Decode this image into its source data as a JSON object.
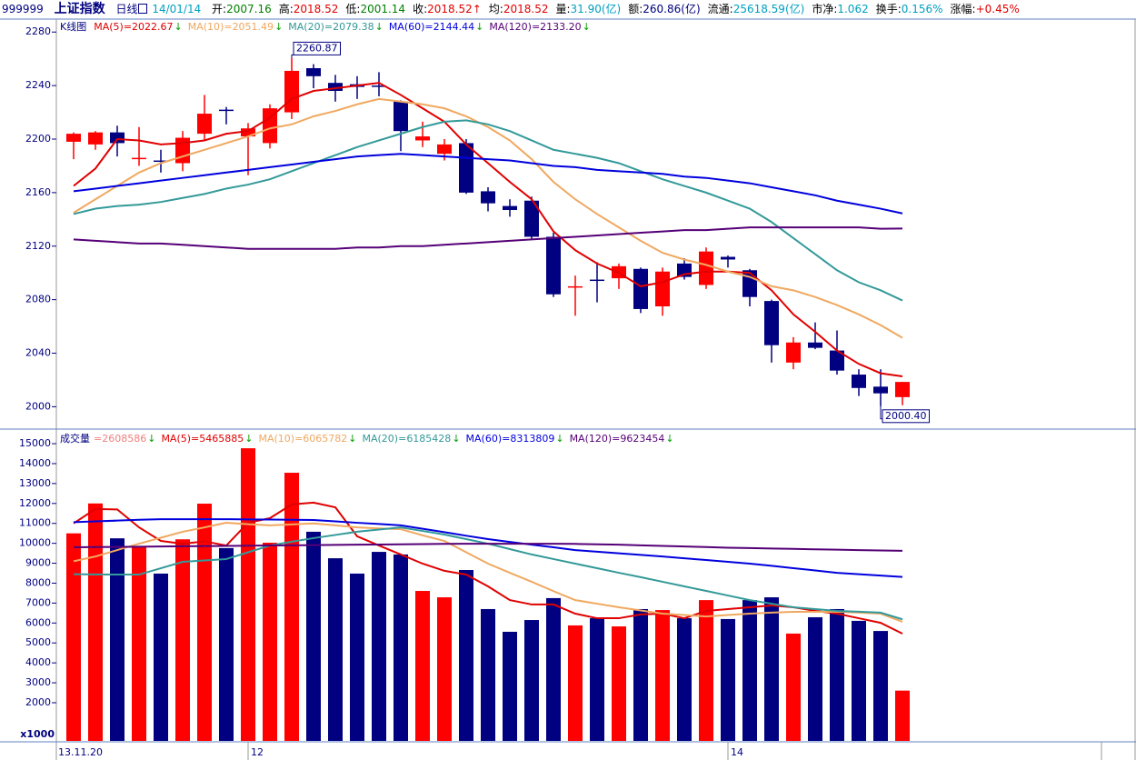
{
  "header": {
    "code": "999999",
    "name": "上证指数",
    "period": "日线",
    "date": "14/01/14",
    "fields": [
      {
        "label": "开:",
        "value": "2007.16",
        "color": "#008000"
      },
      {
        "label": "高:",
        "value": "2018.52",
        "color": "#e00000"
      },
      {
        "label": "低:",
        "value": "2001.14",
        "color": "#008000"
      },
      {
        "label": "收:",
        "value": "2018.52↑",
        "color": "#e00000"
      },
      {
        "label": "均:",
        "value": "2018.52",
        "color": "#e00000"
      },
      {
        "label": "量:",
        "value": "31.90(亿)",
        "color": "#00a0c0"
      },
      {
        "label": "额:",
        "value": "260.86(亿)",
        "color": "#000080"
      },
      {
        "label": "流通:",
        "value": "25618.59(亿)",
        "color": "#00a0c0"
      },
      {
        "label": "市净:",
        "value": "1.062",
        "color": "#00a0c0"
      },
      {
        "label": "换手:",
        "value": "0.156%",
        "color": "#00a0c0"
      },
      {
        "label": "涨幅:",
        "value": "+0.45%",
        "color": "#e00000"
      }
    ]
  },
  "chart_data": [
    {
      "type": "candlestick",
      "title": "K线图",
      "up_color": "#ff0000",
      "down_color": "#000080",
      "categories": [
        "13.11.20",
        null,
        null,
        null,
        null,
        null,
        null,
        null,
        "12",
        null,
        null,
        null,
        null,
        null,
        null,
        null,
        null,
        null,
        null,
        null,
        null,
        null,
        null,
        null,
        null,
        null,
        null,
        null,
        null,
        null,
        "14",
        null,
        null,
        null,
        null,
        null,
        null,
        null,
        null
      ],
      "open": [
        2198,
        2196,
        2205,
        2185,
        2184,
        2182,
        2204,
        2222,
        2202,
        2197,
        2220,
        2253,
        2242,
        2241,
        2240,
        2228,
        2199,
        2189,
        2197,
        2161,
        2150,
        2154,
        2127,
        2089,
        2095,
        2096,
        2103,
        2075,
        2107,
        2091,
        2112,
        2102,
        2079,
        2033,
        2048,
        2042,
        2024,
        2015,
        2007.16
      ],
      "high": [
        2205,
        2206,
        2210,
        2209,
        2192,
        2206,
        2233,
        2224,
        2212,
        2226,
        2260.87,
        2256,
        2248,
        2247,
        2250,
        2229,
        2213,
        2200,
        2200,
        2164,
        2155,
        2157,
        2130,
        2098,
        2108,
        2107,
        2104,
        2104,
        2111,
        2119,
        2113,
        2103,
        2080,
        2052,
        2063,
        2057,
        2028,
        2028,
        2018.52
      ],
      "low": [
        2185,
        2192,
        2187,
        2180,
        2175,
        2176,
        2199,
        2211,
        2173,
        2193,
        2215,
        2238,
        2228,
        2230,
        2232,
        2191,
        2194,
        2184,
        2159,
        2146,
        2142,
        2125,
        2082,
        2068,
        2078,
        2088,
        2070,
        2068,
        2095,
        2088,
        2104,
        2075,
        2033,
        2028,
        2043,
        2024,
        2008,
        2000.4,
        2001.14
      ],
      "close": [
        2204,
        2205,
        2197,
        2186,
        2183,
        2201,
        2219,
        2221,
        2208,
        2223,
        2251,
        2247,
        2236,
        2239,
        2239,
        2206,
        2202,
        2196,
        2160,
        2152,
        2147,
        2127,
        2084,
        2090,
        2094,
        2105,
        2073,
        2101,
        2097,
        2116,
        2110,
        2082,
        2046,
        2048,
        2044,
        2027,
        2014,
        2010,
        2018.52
      ],
      "ylim": [
        1986,
        2289
      ],
      "yticks": [
        2000,
        2040,
        2080,
        2120,
        2160,
        2200,
        2240,
        2280
      ],
      "annotations": [
        {
          "text": "2260.87",
          "value": 2260.87,
          "at": "high"
        },
        {
          "text": "2000.40",
          "value": 2000.4,
          "at": "low"
        }
      ],
      "series": [
        {
          "name": "MA(5)=2022.67",
          "trend": "↓",
          "color": "#e00000",
          "values": [
            2165,
            2178,
            2200,
            2199,
            2196,
            2197,
            2199,
            2204,
            2206,
            2216,
            2230,
            2236,
            2238,
            2240,
            2242,
            2233,
            2223,
            2213,
            2196,
            2182,
            2168,
            2155,
            2131,
            2117,
            2107,
            2100,
            2090,
            2093,
            2099,
            2101,
            2101,
            2100,
            2087,
            2069,
            2056,
            2042,
            2032,
            2025,
            2022.67
          ]
        },
        {
          "name": "MA(10)=2051.49",
          "trend": "↓",
          "color": "#f0a860",
          "values": [
            2145,
            2155,
            2165,
            2175,
            2182,
            2187,
            2192,
            2197,
            2202,
            2208,
            2211,
            2217,
            2221,
            2226,
            2230,
            2228,
            2226,
            2223,
            2217,
            2209,
            2199,
            2185,
            2168,
            2155,
            2144,
            2134,
            2124,
            2115,
            2110,
            2106,
            2101,
            2097,
            2090,
            2087,
            2082,
            2076,
            2069,
            2061,
            2051.49
          ]
        },
        {
          "name": "MA(20)=2079.38",
          "trend": "↓",
          "color": "#339999",
          "values": [
            2144,
            2148,
            2150,
            2151,
            2153,
            2156,
            2159,
            2163,
            2166,
            2170,
            2176,
            2182,
            2188,
            2194,
            2199,
            2204,
            2209,
            2213,
            2214,
            2211,
            2206,
            2199,
            2192,
            2189,
            2186,
            2182,
            2176,
            2170,
            2165,
            2160,
            2154,
            2148,
            2138,
            2126,
            2114,
            2102,
            2093,
            2087,
            2079.38
          ]
        },
        {
          "name": "MA(60)=2144.44",
          "trend": "↓",
          "color": "#0000dd",
          "values": [
            2161,
            2163,
            2165,
            2167,
            2169,
            2171,
            2173,
            2175,
            2177,
            2179,
            2181,
            2183,
            2185,
            2187,
            2188,
            2189,
            2188,
            2187,
            2186,
            2185,
            2184,
            2182,
            2180,
            2179,
            2177,
            2176,
            2175,
            2174,
            2172,
            2171,
            2169,
            2167,
            2164,
            2161,
            2158,
            2154,
            2151,
            2148,
            2144.44
          ]
        },
        {
          "name": "MA(120)=2133.20",
          "trend": "↓",
          "color": "#550077",
          "values": [
            2125,
            2124,
            2123,
            2122,
            2122,
            2121,
            2120,
            2119,
            2118,
            2118,
            2118,
            2118,
            2118,
            2119,
            2119,
            2120,
            2120,
            2121,
            2122,
            2123,
            2124,
            2125,
            2126,
            2127,
            2128,
            2129,
            2130,
            2131,
            2132,
            2132,
            2133,
            2134,
            2134,
            2134,
            2134,
            2134,
            2134,
            2133,
            2133.2
          ]
        }
      ]
    },
    {
      "type": "bar",
      "title": "成交量",
      "volume_label": "=2608586",
      "volume_trend": "↓",
      "volume_color": "#f08080",
      "unit_label": "x1000",
      "values": [
        10500,
        12000,
        10250,
        9850,
        8480,
        10200,
        11990,
        9760,
        14770,
        10030,
        13540,
        10580,
        9250,
        8480,
        9570,
        9440,
        7610,
        7290,
        8660,
        6700,
        5560,
        6150,
        7250,
        5880,
        6240,
        5830,
        6700,
        6650,
        6240,
        7150,
        6200,
        7150,
        7290,
        5470,
        6290,
        6700,
        6110,
        5600,
        2608.586
      ],
      "ylim": [
        84,
        15458
      ],
      "yticks": [
        2000,
        3000,
        4000,
        5000,
        6000,
        7000,
        8000,
        9000,
        10000,
        11000,
        12000,
        13000,
        14000,
        15000
      ],
      "series": [
        {
          "name": "MA(5)=5465885",
          "trend": "↓",
          "color": "#e00000",
          "values": [
            11000,
            11720,
            11700,
            10800,
            10120,
            9980,
            10100,
            9890,
            11030,
            11260,
            11950,
            12040,
            11810,
            10350,
            9890,
            9440,
            8980,
            8620,
            8430,
            7840,
            7150,
            6930,
            6930,
            6470,
            6240,
            6240,
            6430,
            6470,
            6240,
            6610,
            6700,
            6790,
            6880,
            6790,
            6610,
            6470,
            6240,
            6010,
            5465.885
          ]
        },
        {
          "name": "MA(10)=6065782",
          "trend": "↓",
          "color": "#f0a860",
          "values": [
            9100,
            9340,
            9660,
            9980,
            10280,
            10580,
            10800,
            11030,
            10960,
            10900,
            10950,
            11000,
            10900,
            10800,
            10750,
            10710,
            10400,
            10120,
            9550,
            8980,
            8520,
            8070,
            7600,
            7150,
            6970,
            6790,
            6630,
            6470,
            6400,
            6330,
            6400,
            6470,
            6520,
            6560,
            6560,
            6560,
            6520,
            6470,
            6065.782
          ]
        },
        {
          "name": "MA(20)=6185428",
          "trend": "↓",
          "color": "#339999",
          "values": [
            8450,
            8440,
            8430,
            8430,
            8750,
            9070,
            9140,
            9210,
            9550,
            9890,
            10080,
            10260,
            10420,
            10580,
            10690,
            10800,
            10620,
            10440,
            10210,
            9980,
            9710,
            9440,
            9210,
            8980,
            8750,
            8520,
            8300,
            8070,
            7840,
            7610,
            7380,
            7150,
            6970,
            6790,
            6700,
            6610,
            6570,
            6520,
            6185.428
          ]
        },
        {
          "name": "MA(60)=8313809",
          "trend": "↓",
          "color": "#0000dd",
          "values": [
            11060,
            11100,
            11140,
            11180,
            11210,
            11210,
            11210,
            11210,
            11200,
            11190,
            11180,
            11170,
            11100,
            11030,
            10970,
            10900,
            10730,
            10560,
            10380,
            10210,
            10070,
            9930,
            9800,
            9660,
            9580,
            9500,
            9420,
            9340,
            9250,
            9160,
            9070,
            8980,
            8870,
            8750,
            8640,
            8520,
            8450,
            8380,
            8313.809
          ]
        },
        {
          "name": "MA(120)=9623454",
          "trend": "↓",
          "color": "#550077",
          "values": [
            9800,
            9810,
            9820,
            9830,
            9840,
            9850,
            9860,
            9870,
            9880,
            9890,
            9900,
            9910,
            9920,
            9930,
            9940,
            9950,
            9960,
            9970,
            9980,
            9980,
            9980,
            9980,
            9980,
            9970,
            9950,
            9930,
            9900,
            9870,
            9840,
            9810,
            9780,
            9760,
            9740,
            9720,
            9700,
            9680,
            9660,
            9640,
            9623.454
          ]
        }
      ]
    }
  ]
}
